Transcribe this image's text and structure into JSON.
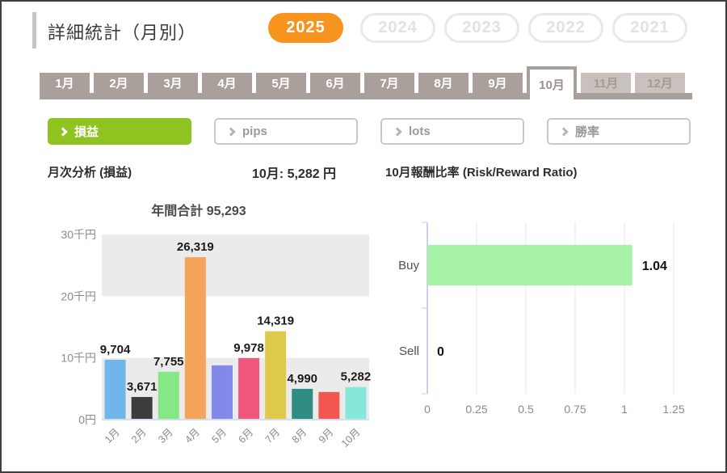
{
  "header": {
    "title": "詳細統計（月別）",
    "years": [
      {
        "label": "2025",
        "active": true
      },
      {
        "label": "2024",
        "active": false
      },
      {
        "label": "2023",
        "active": false
      },
      {
        "label": "2022",
        "active": false
      },
      {
        "label": "2021",
        "active": false
      }
    ]
  },
  "month_tabs": {
    "items": [
      {
        "label": "1月",
        "state": "normal"
      },
      {
        "label": "2月",
        "state": "normal"
      },
      {
        "label": "3月",
        "state": "normal"
      },
      {
        "label": "4月",
        "state": "normal"
      },
      {
        "label": "5月",
        "state": "normal"
      },
      {
        "label": "6月",
        "state": "normal"
      },
      {
        "label": "7月",
        "state": "normal"
      },
      {
        "label": "8月",
        "state": "normal"
      },
      {
        "label": "9月",
        "state": "normal"
      },
      {
        "label": "10月",
        "state": "active"
      },
      {
        "label": "11月",
        "state": "disabled"
      },
      {
        "label": "12月",
        "state": "disabled"
      }
    ]
  },
  "filters": {
    "items": [
      {
        "label": "損益",
        "active": true
      },
      {
        "label": "pips",
        "active": false
      },
      {
        "label": "lots",
        "active": false
      },
      {
        "label": "勝率",
        "active": false
      }
    ]
  },
  "section": {
    "analysis_title": "月次分析 (損益)",
    "month_total": "10月: 5,282 円",
    "rr_title": "10月報酬比率 (Risk/Reward Ratio)"
  },
  "colors": {
    "accent_orange": "#f7941e",
    "active_green": "#8fc31f",
    "tab_taupe": "#a99f9b"
  },
  "chart_data": [
    {
      "id": "monthly-pl",
      "type": "bar",
      "title": "年間合計 95,293",
      "categories": [
        "1月",
        "2月",
        "3月",
        "4月",
        "5月",
        "6月",
        "7月",
        "8月",
        "9月",
        "10月"
      ],
      "values": [
        9704,
        3671,
        7755,
        26319,
        8800,
        9978,
        14319,
        4990,
        4475,
        5282
      ],
      "bar_labels": [
        "9,704",
        "3,671",
        "7,755",
        "26,319",
        "",
        "9,978",
        "14,319",
        "4,990",
        "",
        "5,282"
      ],
      "colors": [
        "#6fb6e9",
        "#3d3d3d",
        "#85e785",
        "#f5a45c",
        "#8289e8",
        "#f0577e",
        "#dfc94a",
        "#2f8c84",
        "#f4574f",
        "#85e8db"
      ],
      "y_ticks": [
        {
          "value": 0,
          "label": "0円"
        },
        {
          "value": 10000,
          "label": "10千円"
        },
        {
          "value": 20000,
          "label": "20千円"
        },
        {
          "value": 30000,
          "label": "30千円"
        }
      ],
      "ylim": [
        0,
        30000
      ],
      "band_color": "#ebebeb"
    },
    {
      "id": "risk-reward",
      "type": "bar-horizontal",
      "categories": [
        "Buy",
        "Sell"
      ],
      "values": [
        1.04,
        0
      ],
      "bar_labels": [
        "1.04",
        "0"
      ],
      "bar_color": "#a6f2a6",
      "x_ticks": [
        0,
        0.25,
        0.5,
        0.75,
        1,
        1.25
      ],
      "x_tick_labels": [
        "0",
        "0.25",
        "0.5",
        "0.75",
        "1",
        "1.25"
      ],
      "xlim": [
        0,
        1.25
      ],
      "grid": true
    }
  ]
}
